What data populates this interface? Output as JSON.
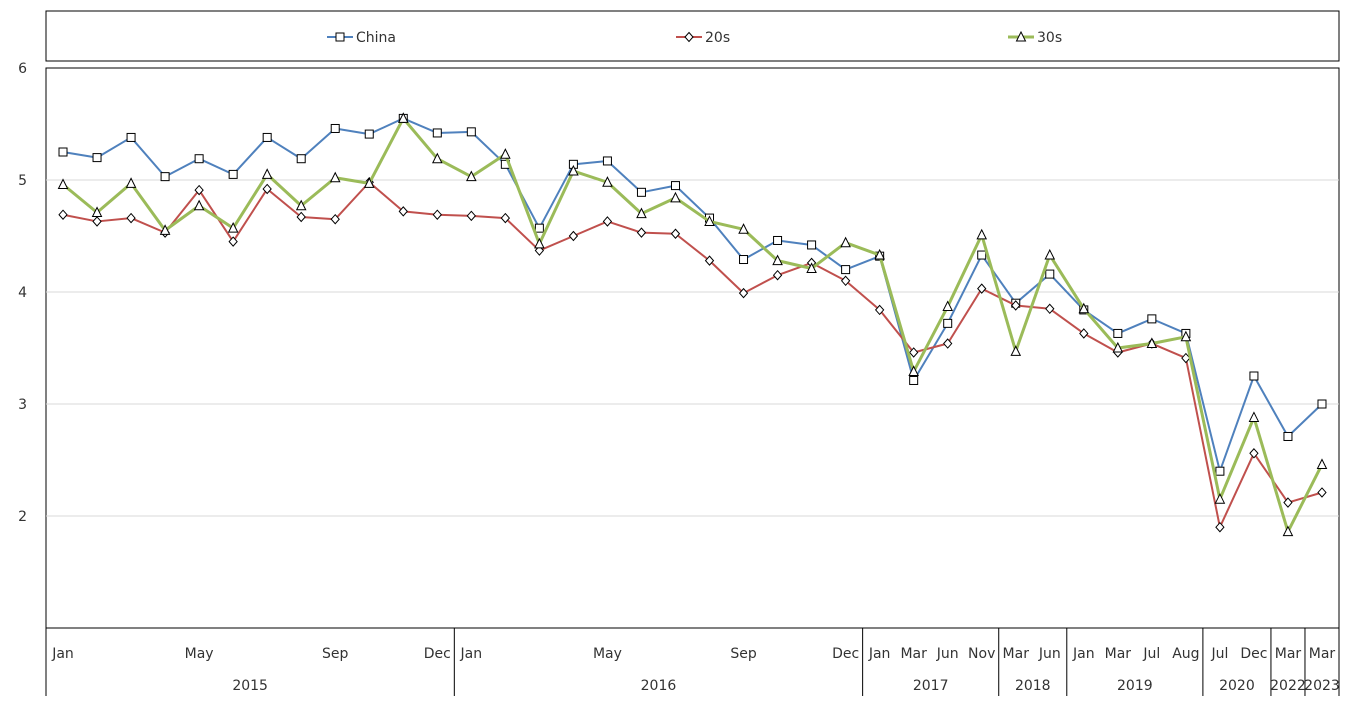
{
  "chart_data": {
    "type": "line",
    "ylim": [
      1,
      6
    ],
    "yticks": [
      "2",
      "3",
      "4",
      "5",
      "6"
    ],
    "grid": true,
    "legend_position": "top",
    "categories": [
      "Jan",
      "",
      "",
      "",
      "May",
      "",
      "",
      "",
      "Sep",
      "",
      "",
      "Dec",
      "Jan",
      "",
      "",
      "",
      "May",
      "",
      "",
      "",
      "Sep",
      "",
      "",
      "Dec",
      "Jan",
      "Mar",
      "Jun",
      "Nov",
      "Mar",
      "Jun",
      "Jan",
      "Mar",
      "Jul",
      "Aug",
      "Jul",
      "Dec",
      "Mar",
      "Mar"
    ],
    "year_groups": [
      {
        "label": "2015",
        "count": 12
      },
      {
        "label": "2016",
        "count": 12
      },
      {
        "label": "2017",
        "count": 4
      },
      {
        "label": "2018",
        "count": 2
      },
      {
        "label": "2019",
        "count": 4
      },
      {
        "label": "2020",
        "count": 2
      },
      {
        "label": "2022",
        "count": 1
      },
      {
        "label": "2023",
        "count": 1
      }
    ],
    "series": [
      {
        "name": "China",
        "color": "#4F81BD",
        "marker": "square",
        "values": [
          5.25,
          5.2,
          5.38,
          5.03,
          5.19,
          5.05,
          5.38,
          5.19,
          5.46,
          5.41,
          5.55,
          5.42,
          5.43,
          5.14,
          4.57,
          5.14,
          5.17,
          4.89,
          4.95,
          4.66,
          4.29,
          4.46,
          4.42,
          4.2,
          4.32,
          3.21,
          3.72,
          4.33,
          3.9,
          4.16,
          3.84,
          3.63,
          3.76,
          3.63,
          2.4,
          3.25,
          2.71,
          3.0
        ]
      },
      {
        "name": "20s",
        "color": "#C0504D",
        "marker": "diamond",
        "values": [
          4.69,
          4.63,
          4.66,
          4.53,
          4.91,
          4.45,
          4.92,
          4.67,
          4.65,
          4.98,
          4.72,
          4.69,
          4.68,
          4.66,
          4.37,
          4.5,
          4.63,
          4.53,
          4.52,
          4.28,
          3.99,
          4.15,
          4.26,
          4.1,
          3.84,
          3.46,
          3.54,
          4.03,
          3.88,
          3.85,
          3.63,
          3.46,
          3.54,
          3.41,
          1.9,
          2.56,
          2.12,
          2.21
        ]
      },
      {
        "name": "30s",
        "color": "#9BBB59",
        "marker": "triangle",
        "values": [
          4.96,
          4.71,
          4.97,
          4.55,
          4.77,
          4.57,
          5.05,
          4.77,
          5.02,
          4.97,
          5.55,
          5.19,
          5.03,
          5.23,
          4.43,
          5.08,
          4.98,
          4.7,
          4.84,
          4.63,
          4.56,
          4.28,
          4.21,
          4.44,
          4.33,
          3.29,
          3.87,
          4.51,
          3.47,
          4.33,
          3.85,
          3.5,
          3.54,
          3.6,
          2.15,
          2.88,
          1.86,
          2.46
        ]
      }
    ]
  }
}
